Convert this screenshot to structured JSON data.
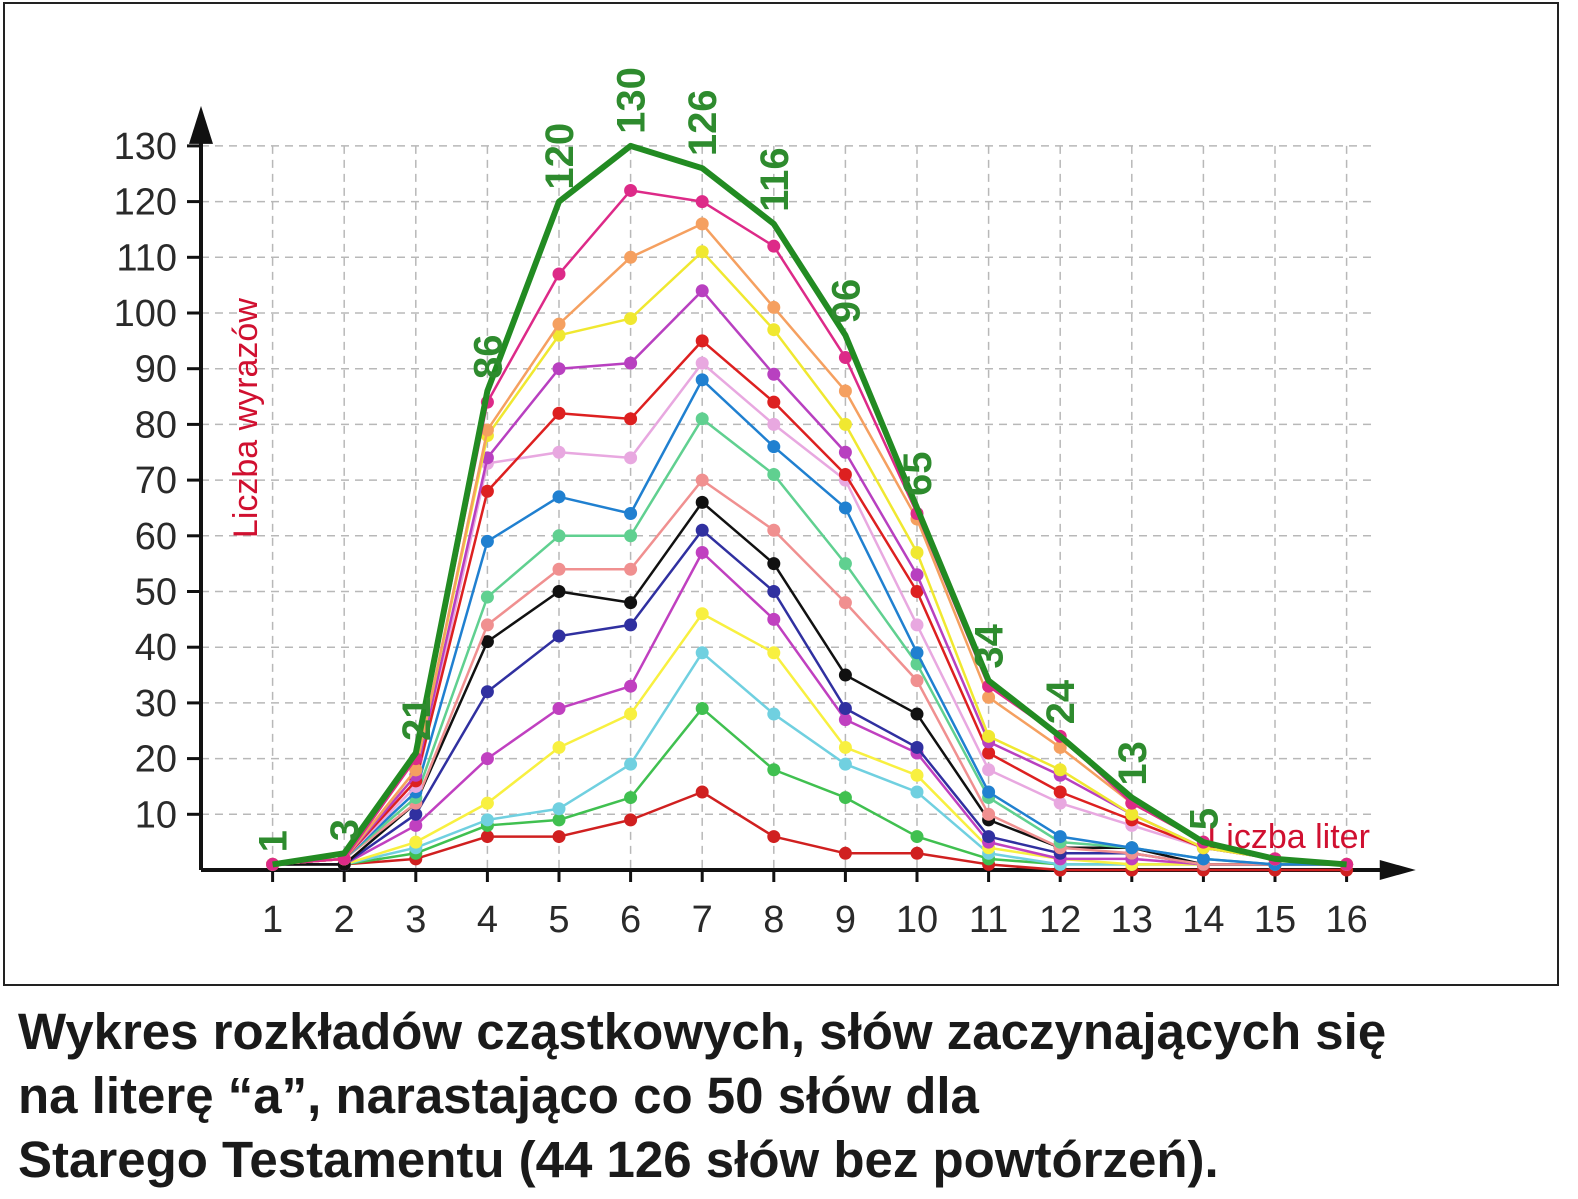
{
  "chart_data": {
    "type": "line",
    "title": "",
    "ylabel": "Liczba wyrazów",
    "xlabel": "Liczba liter",
    "x": [
      1,
      2,
      3,
      4,
      5,
      6,
      7,
      8,
      9,
      10,
      11,
      12,
      13,
      14,
      15,
      16
    ],
    "xlim": [
      0,
      17
    ],
    "ylim": [
      0,
      130
    ],
    "yticks": [
      10,
      20,
      30,
      40,
      50,
      60,
      70,
      80,
      90,
      100,
      110,
      120,
      130
    ],
    "grid": true,
    "peak_labels": [
      "1",
      "3",
      "21",
      "86",
      "120",
      "130",
      "126",
      "116",
      "96",
      "65",
      "34",
      "24",
      "13",
      "5"
    ],
    "series": [
      {
        "color": "#228b22",
        "values": [
          1,
          3,
          21,
          86,
          120,
          130,
          126,
          116,
          96,
          65,
          34,
          24,
          13,
          5,
          2,
          1
        ]
      },
      {
        "color": "#dd2a88",
        "values": [
          1,
          2,
          20,
          84,
          107,
          122,
          120,
          112,
          92,
          64,
          33,
          24,
          12,
          5,
          2,
          1
        ]
      },
      {
        "color": "#f5a060",
        "values": [
          1,
          2,
          18,
          79,
          98,
          110,
          116,
          101,
          86,
          63,
          31,
          22,
          12,
          5,
          2,
          1
        ]
      },
      {
        "color": "#f0e830",
        "values": [
          1,
          2,
          18,
          78,
          96,
          99,
          111,
          97,
          80,
          57,
          24,
          18,
          10,
          4,
          2,
          1
        ]
      },
      {
        "color": "#b840c0",
        "values": [
          1,
          2,
          17,
          74,
          90,
          91,
          104,
          89,
          75,
          53,
          23,
          17,
          10,
          4,
          2,
          1
        ]
      },
      {
        "color": "#dd2020",
        "values": [
          1,
          2,
          16,
          68,
          82,
          81,
          95,
          84,
          71,
          50,
          21,
          14,
          9,
          4,
          2,
          1
        ]
      },
      {
        "color": "#e8a8e0",
        "values": [
          1,
          2,
          15,
          73,
          75,
          74,
          91,
          80,
          70,
          44,
          18,
          12,
          8,
          4,
          2,
          1
        ]
      },
      {
        "color": "#2080d0",
        "values": [
          1,
          2,
          14,
          59,
          67,
          64,
          88,
          76,
          65,
          39,
          14,
          6,
          4,
          2,
          1,
          1
        ]
      },
      {
        "color": "#60d090",
        "values": [
          1,
          2,
          13,
          49,
          60,
          60,
          81,
          71,
          55,
          37,
          13,
          5,
          4,
          2,
          1,
          1
        ]
      },
      {
        "color": "#f09090",
        "values": [
          1,
          2,
          12,
          44,
          54,
          54,
          70,
          61,
          48,
          34,
          10,
          4,
          3,
          1,
          1,
          1
        ]
      },
      {
        "color": "#111111",
        "values": [
          1,
          1,
          12,
          41,
          50,
          48,
          66,
          55,
          35,
          28,
          9,
          4,
          4,
          1,
          1,
          1
        ]
      },
      {
        "color": "#3030a0",
        "values": [
          1,
          1,
          10,
          32,
          42,
          44,
          61,
          50,
          29,
          22,
          6,
          3,
          3,
          1,
          1,
          1
        ]
      },
      {
        "color": "#c040c0",
        "values": [
          1,
          1,
          8,
          20,
          29,
          33,
          57,
          45,
          27,
          21,
          5,
          2,
          2,
          1,
          1,
          1
        ]
      },
      {
        "color": "#f8f040",
        "values": [
          1,
          1,
          5,
          12,
          22,
          28,
          46,
          39,
          22,
          17,
          4,
          2,
          1,
          1,
          1,
          1
        ]
      },
      {
        "color": "#70d0e0",
        "values": [
          1,
          1,
          4,
          9,
          11,
          19,
          39,
          28,
          19,
          14,
          3,
          1,
          1,
          1,
          1,
          1
        ]
      },
      {
        "color": "#40c050",
        "values": [
          1,
          1,
          3,
          8,
          9,
          13,
          29,
          18,
          13,
          6,
          2,
          1,
          1,
          1,
          1,
          1
        ]
      },
      {
        "color": "#d02020",
        "values": [
          1,
          1,
          2,
          6,
          6,
          9,
          14,
          6,
          3,
          3,
          1,
          0,
          0,
          0,
          0,
          0
        ]
      }
    ]
  },
  "caption": {
    "line1": "Wykres rozkładów cząstkowych, słów zaczynających się",
    "line2": "na literę “a”, narastająco co 50 słów dla",
    "line3": "Starego Testamentu (44 126 słów bez powtórzeń)."
  }
}
